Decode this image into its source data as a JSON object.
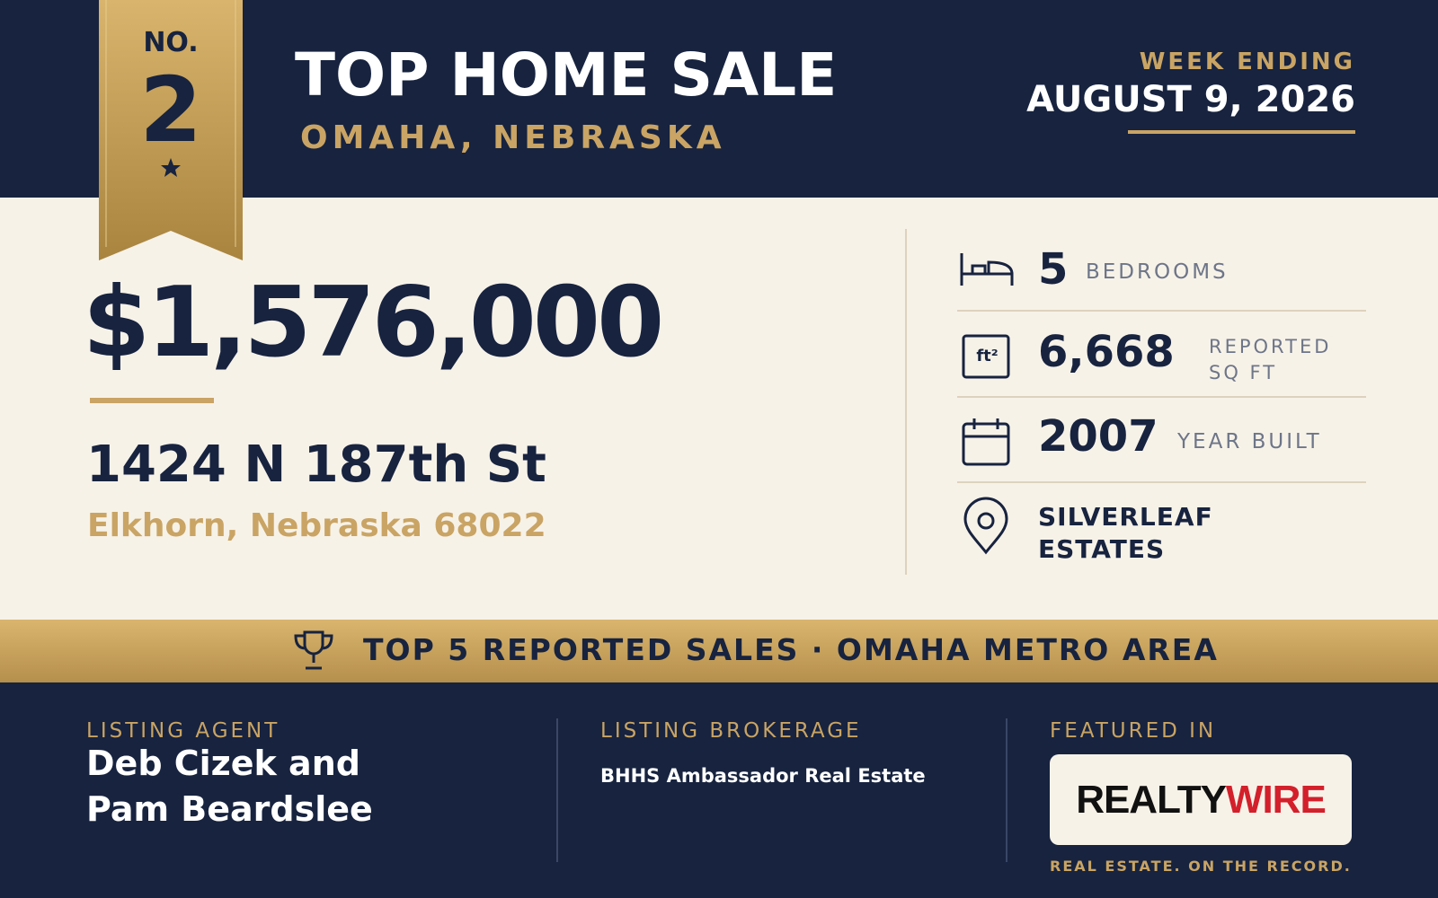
{
  "ribbon": {
    "prefix": "NO.",
    "rank": "2"
  },
  "header": {
    "title": "TOP HOME SALE",
    "subtitle": "OMAHA, NEBRASKA",
    "week_label": "WEEK ENDING",
    "week_date": "AUGUST 9, 2026"
  },
  "sale": {
    "price": "$1,576,000",
    "address": "1424 N 187th St",
    "city": "Elkhorn, Nebraska 68022"
  },
  "stats": {
    "bedrooms": {
      "value": "5",
      "label": "BEDROOMS"
    },
    "area": {
      "icon": "ft²",
      "value": "6,668",
      "label": "REPORTED SQ FT"
    },
    "year": {
      "value": "2007",
      "label": "YEAR BUILT"
    },
    "neighborhood": {
      "label": "SILVERLEAF ESTATES"
    }
  },
  "banner": "TOP 5 REPORTED SALES · OMAHA METRO AREA",
  "footer": {
    "agent_label": "LISTING AGENT",
    "agent": "Deb Cizek and Pam Beardslee",
    "brokerage_label": "LISTING BROKERAGE",
    "brokerage": "BHHS Ambassador Real Estate",
    "featured_label": "FEATURED IN",
    "logo_first": "REALTY",
    "logo_second": "WIRE",
    "tagline": "REAL ESTATE. ON THE RECORD."
  }
}
